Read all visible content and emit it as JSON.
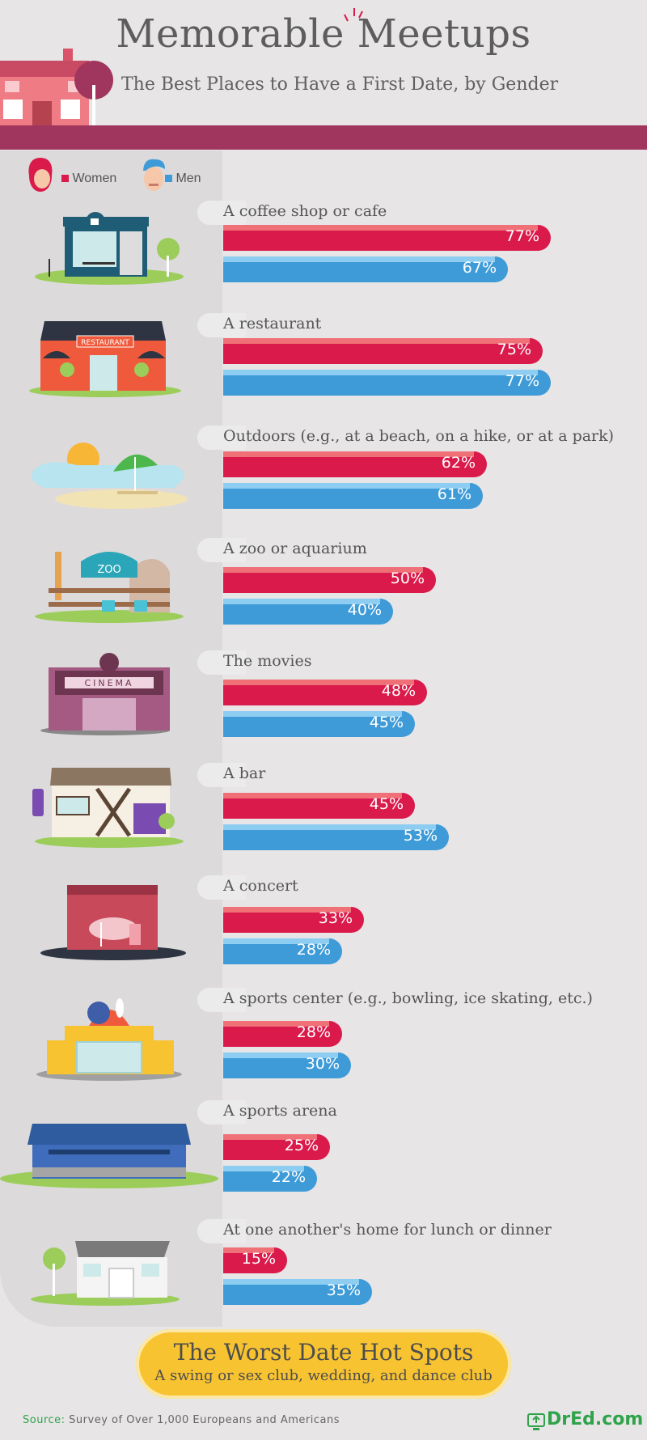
{
  "header": {
    "title": "Memorable Meetups",
    "subtitle": "The Best Places to Have a First Date, by Gender"
  },
  "legend": {
    "women": "Women",
    "men": "Men"
  },
  "colors": {
    "women": "#da1a4a",
    "men": "#3e9bd8",
    "band": "#a0355e",
    "callout": "#f8c331",
    "brand": "#2fa34a"
  },
  "icons": [
    "house-icon",
    "tree-icon",
    "woman-avatar-icon",
    "man-avatar-icon",
    "coffee-shop-icon",
    "restaurant-icon",
    "beach-icon",
    "zoo-icon",
    "cinema-icon",
    "bar-icon",
    "concert-stage-icon",
    "bowling-alley-icon",
    "sports-arena-icon",
    "home-icon",
    "monitor-logo-icon"
  ],
  "chart_data": {
    "type": "bar",
    "orientation": "horizontal",
    "categories": [
      "A coffee shop or cafe",
      "A restaurant",
      "Outdoors (e.g., at a beach, on a hike, or at a park)",
      "A zoo or aquarium",
      "The movies",
      "A bar",
      "A concert",
      "A sports center (e.g., bowling, ice skating, etc.)",
      "A sports arena",
      "At one another's home for lunch or dinner"
    ],
    "series": [
      {
        "name": "Women",
        "values": [
          77,
          75,
          62,
          50,
          48,
          45,
          33,
          28,
          25,
          15
        ]
      },
      {
        "name": "Men",
        "values": [
          67,
          77,
          61,
          40,
          45,
          53,
          28,
          30,
          22,
          35
        ]
      }
    ],
    "unit": "%",
    "legend_position": "top-left",
    "grid": false
  },
  "worst": {
    "title": "The Worst Date Hot Spots",
    "subtitle": "A swing or sex club, wedding, and dance club"
  },
  "footer": {
    "source_label": "Source:",
    "source_text": "Survey of Over 1,000 Europeans and Americans",
    "brand": "DrEd.com"
  }
}
